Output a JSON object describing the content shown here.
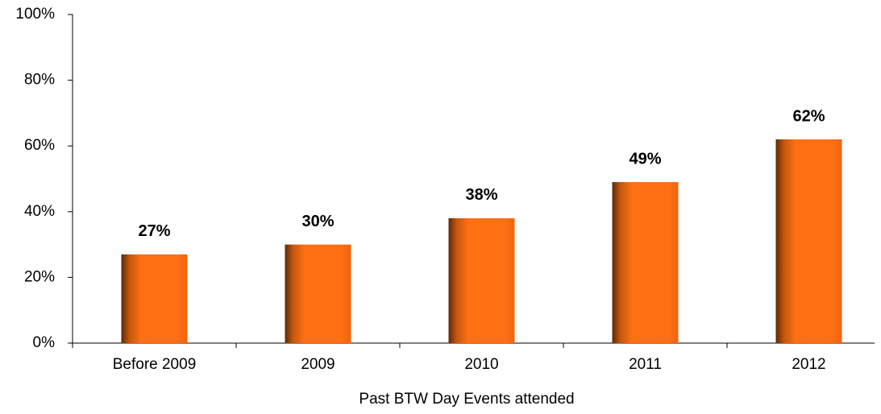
{
  "chart_data": {
    "type": "bar",
    "categories": [
      "Before 2009",
      "2009",
      "2010",
      "2011",
      "2012"
    ],
    "values": [
      27,
      30,
      38,
      49,
      62
    ],
    "value_labels": [
      "27%",
      "30%",
      "38%",
      "49%",
      "62%"
    ],
    "color": "#ff7014",
    "x_label": "Past BTW Day Events attended",
    "ylim": [
      0,
      100
    ],
    "yticks": [
      {
        "value": 0,
        "label": "0%"
      },
      {
        "value": 20,
        "label": "20%"
      },
      {
        "value": 40,
        "label": "40%"
      },
      {
        "value": 60,
        "label": "60%"
      },
      {
        "value": 80,
        "label": "80%"
      },
      {
        "value": 100,
        "label": "100%"
      }
    ],
    "grid": false
  }
}
